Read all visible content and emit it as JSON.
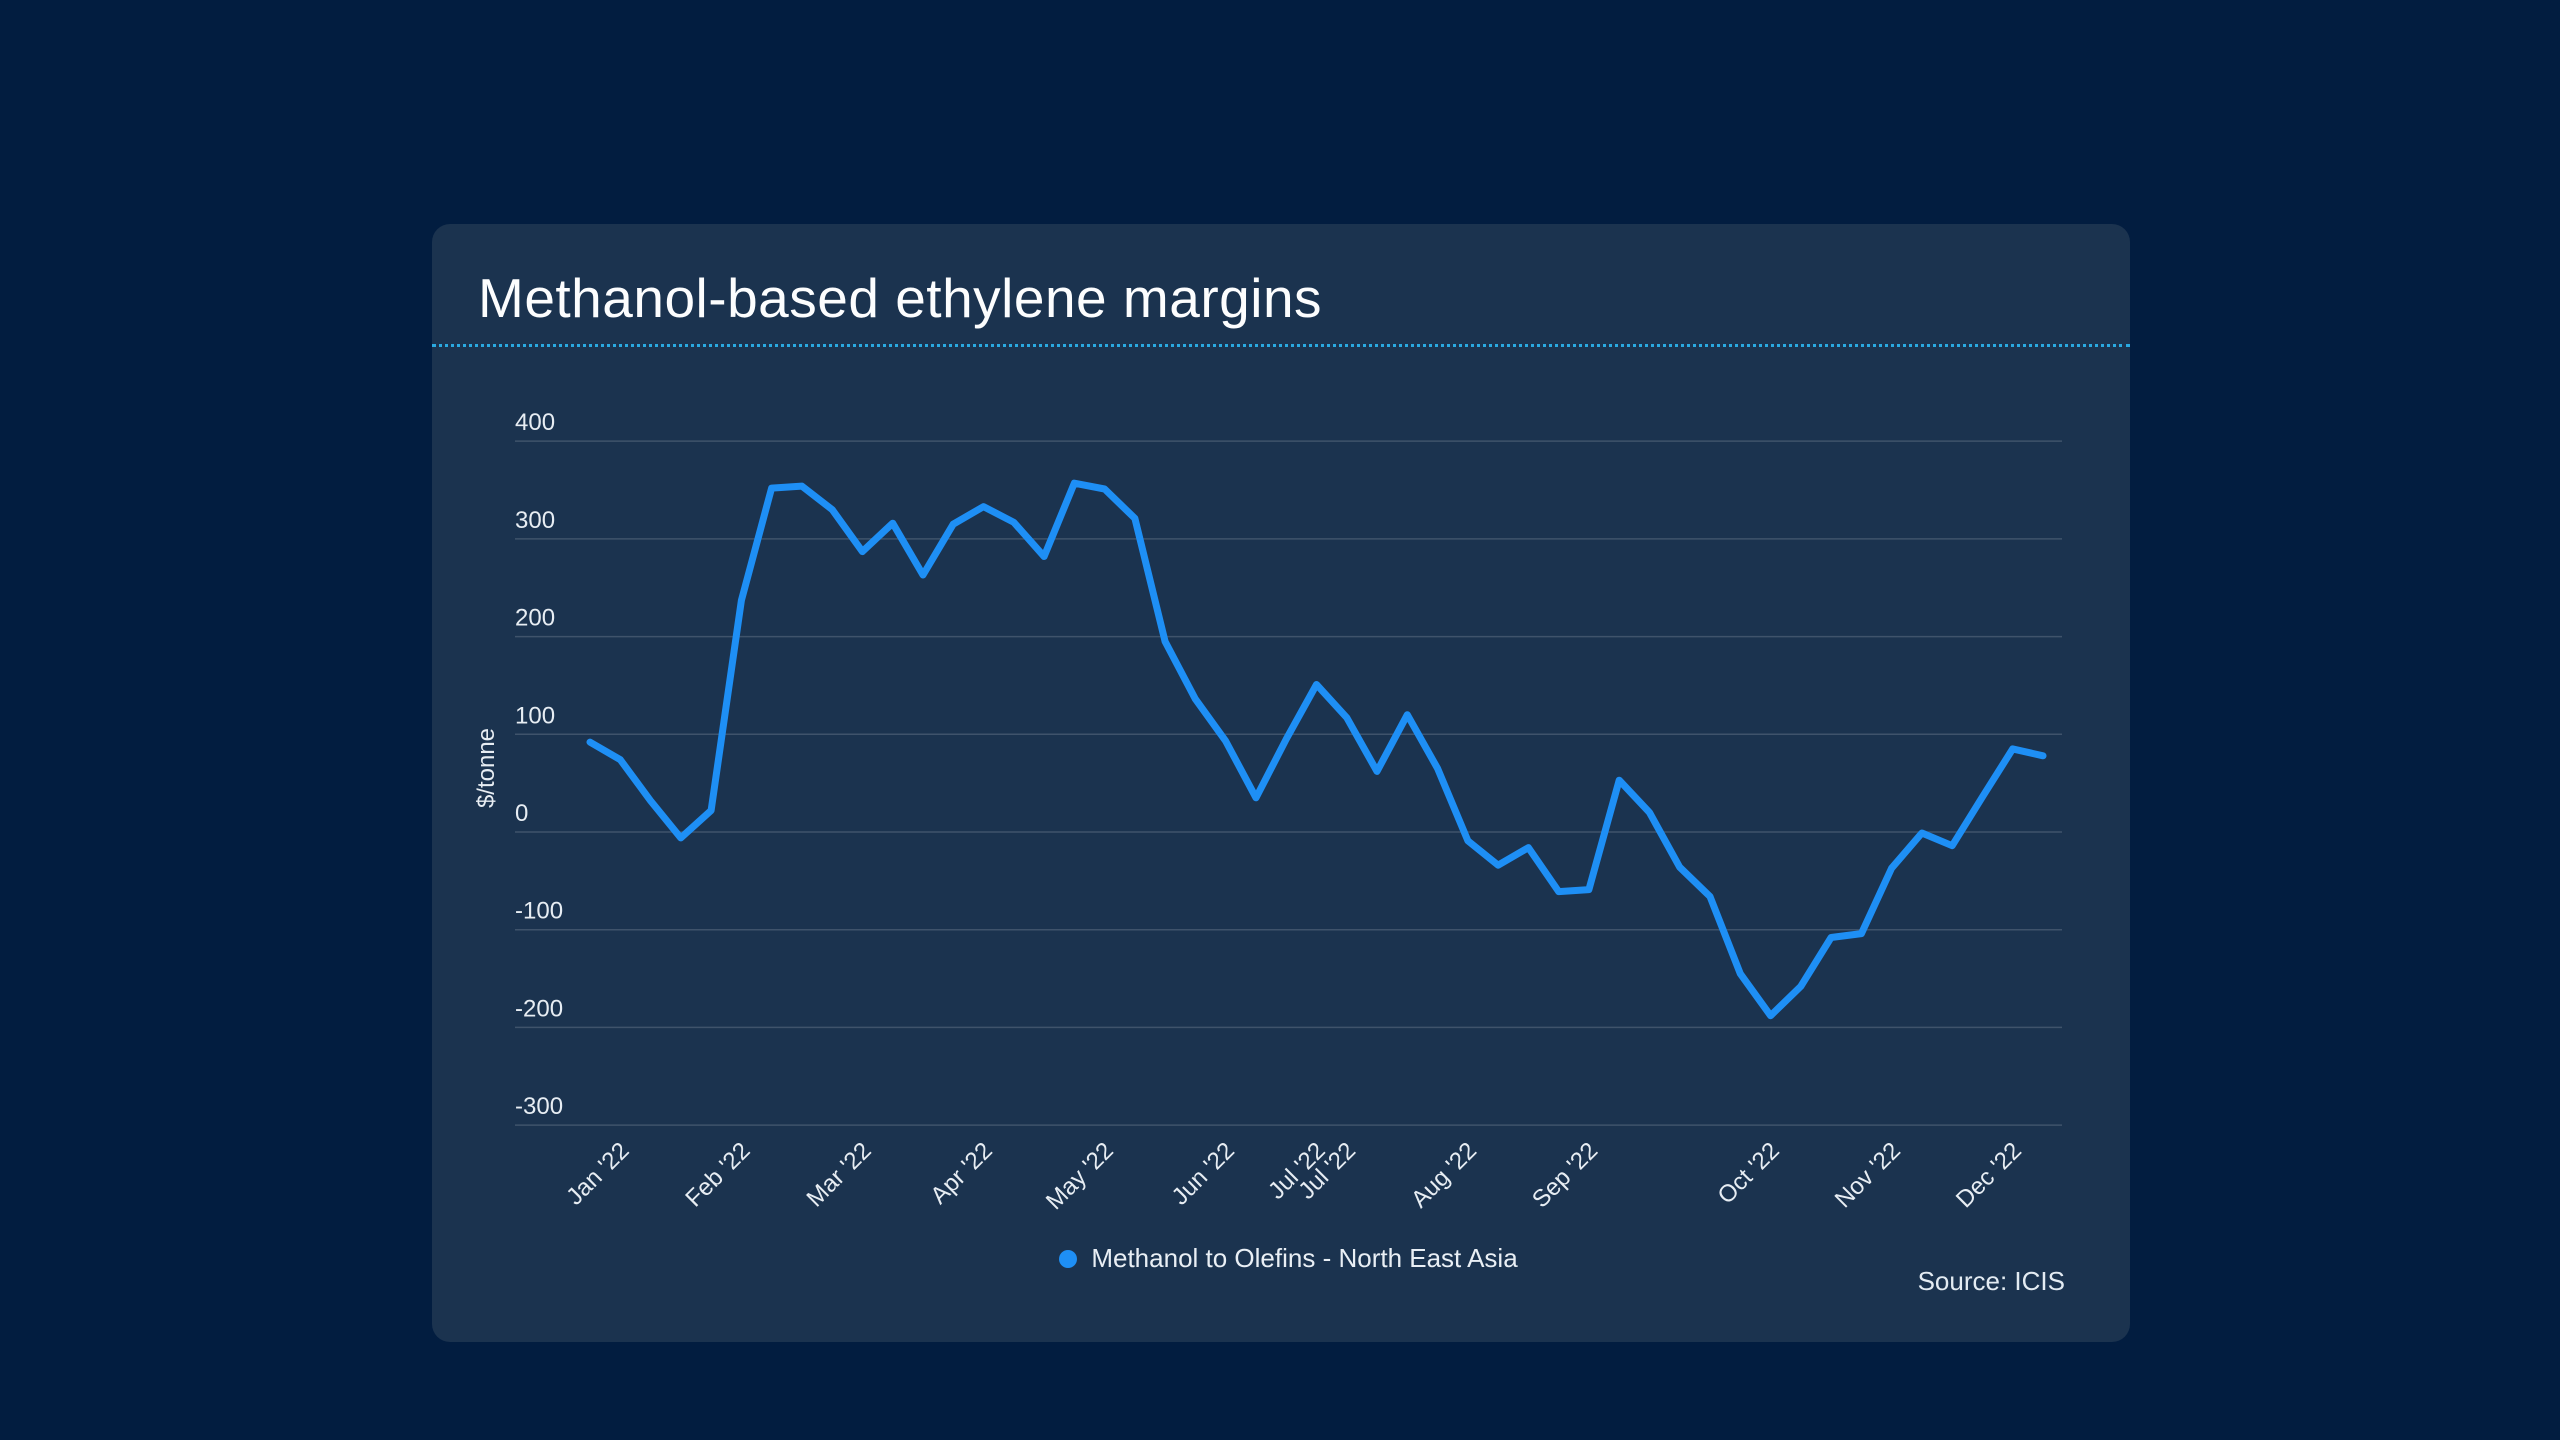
{
  "page": {
    "background": "#021d40"
  },
  "card": {
    "background": "#1b334f",
    "title": "Methanol-based ethylene margins",
    "divider_color": "#2aa9e0",
    "source": "Source: ICIS"
  },
  "legend": {
    "label": "Methanol to Olefins - North East Asia",
    "marker_color": "#1e8ff5"
  },
  "chart_data": {
    "type": "line",
    "title": "Methanol-based ethylene margins",
    "xlabel": "",
    "ylabel": "$/tonne",
    "ylim": [
      -300,
      400
    ],
    "yticks": [
      400,
      300,
      200,
      100,
      0,
      -100,
      -200,
      -300
    ],
    "grid": true,
    "legend_position": "bottom",
    "frequency": "weekly",
    "x_ticks": [
      {
        "index": 1,
        "label": "Jan '22"
      },
      {
        "index": 5,
        "label": "Feb '22"
      },
      {
        "index": 9,
        "label": "Mar '22"
      },
      {
        "index": 13,
        "label": "Apr '22"
      },
      {
        "index": 17,
        "label": "May '22"
      },
      {
        "index": 21,
        "label": "Jun '22"
      },
      {
        "index": 24,
        "label": "Jul '22"
      },
      {
        "index": 25,
        "label": "Jul '22"
      },
      {
        "index": 29,
        "label": "Aug '22"
      },
      {
        "index": 33,
        "label": "Sep '22"
      },
      {
        "index": 39,
        "label": "Oct '22"
      },
      {
        "index": 43,
        "label": "Nov '22"
      },
      {
        "index": 47,
        "label": "Dec '22"
      }
    ],
    "series": [
      {
        "name": "Methanol to Olefins - North East Asia",
        "color": "#1e8ff5",
        "values": [
          92,
          74,
          32,
          -6,
          22,
          237,
          352,
          354,
          330,
          287,
          316,
          263,
          315,
          333,
          317,
          282,
          357,
          351,
          321,
          195,
          136,
          93,
          35,
          95,
          151,
          117,
          62,
          120,
          65,
          -9,
          -34,
          -16,
          -61,
          -59,
          53,
          20,
          -36,
          -66,
          -145,
          -188,
          -158,
          -108,
          -104,
          -37,
          -1,
          -14,
          36,
          85,
          78
        ]
      }
    ],
    "gridline_color": "rgba(255,255,255,0.16)",
    "axis_text_color": "#e7edf3"
  }
}
